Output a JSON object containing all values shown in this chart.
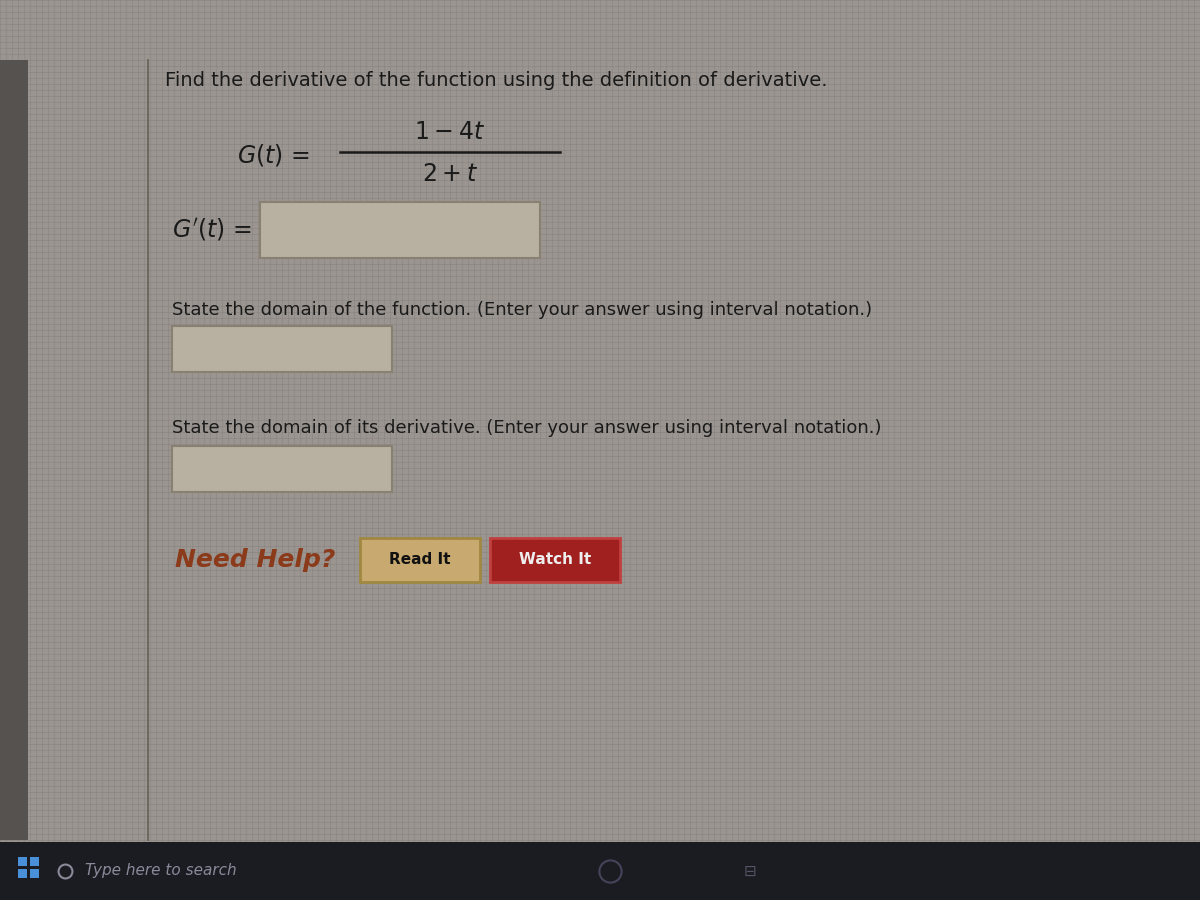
{
  "bg_color": "#9a9590",
  "bg_color2": "#888480",
  "left_strip_color": "#555250",
  "title_text": "Find the derivative of the function using the definition of derivative.",
  "numerator": "1 − 4t",
  "denominator": "2 + t",
  "domain_func_label": "State the domain of the function. (Enter your answer using interval notation.)",
  "domain_deriv_label": "State the domain of its derivative. (Enter your answer using interval notation.)",
  "need_help_text": "Need Help?",
  "need_help_color": "#8b3a1a",
  "read_it_text": "Read It",
  "watch_it_text": "Watch It",
  "read_btn_bg": "#c8aa70",
  "read_btn_border": "#a08840",
  "watch_btn_bg": "#a02020",
  "watch_btn_border": "#c04040",
  "input_box_fill": "#b8b0a0",
  "input_box_border": "#888070",
  "taskbar_bg": "#1a1c22",
  "taskbar_text": "Type here to search",
  "taskbar_text_color": "#8a8a9a",
  "text_color": "#1a1a1a",
  "divider_color": "#666055",
  "font_size_title": 14,
  "font_size_body": 13,
  "font_size_math": 14,
  "font_size_need_help": 16,
  "grid_line_color": "#7a7570",
  "grid_line_alpha": 0.55
}
